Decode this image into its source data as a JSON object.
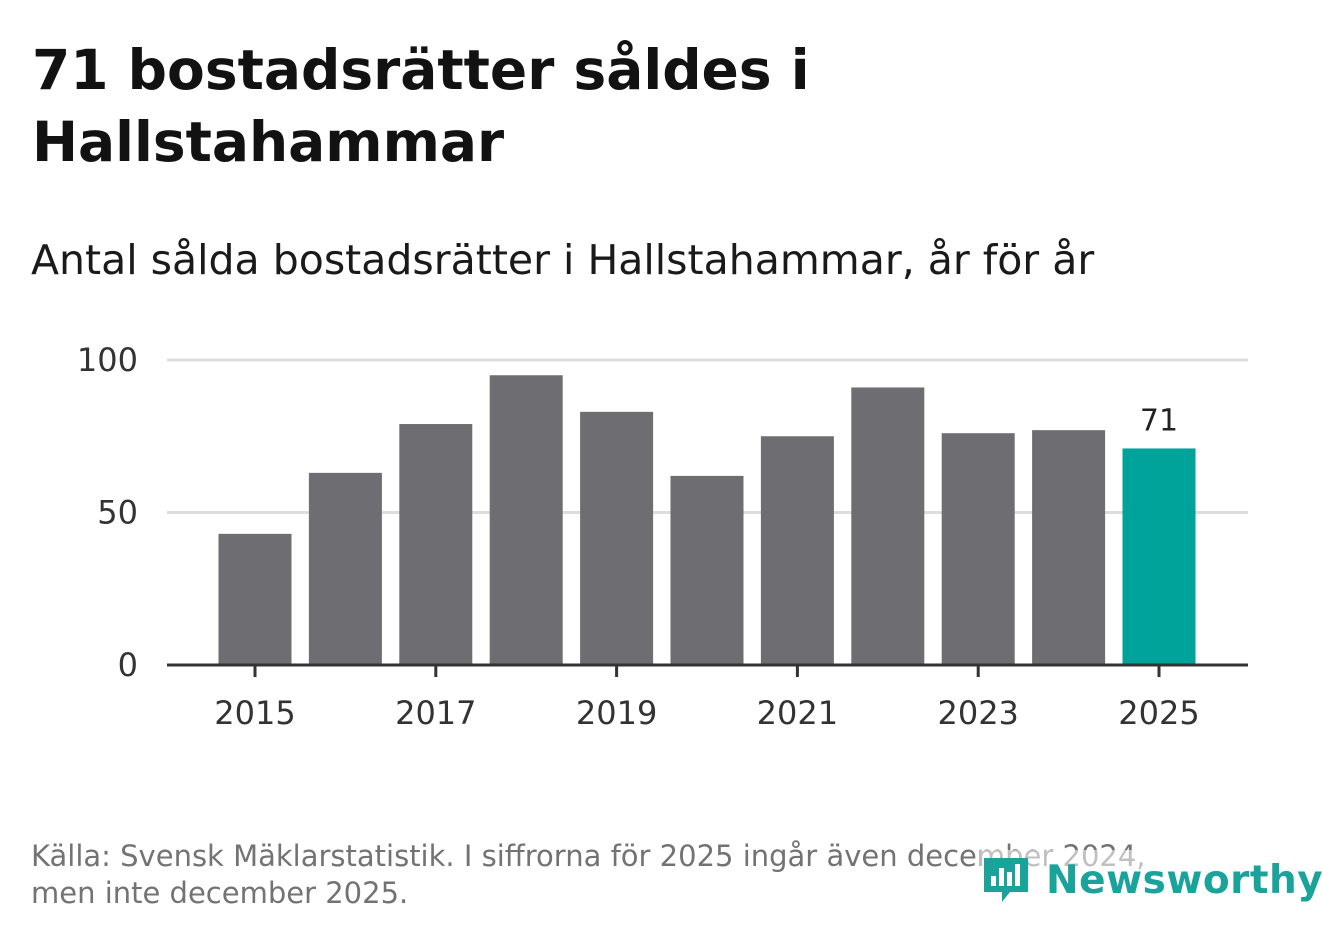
{
  "header": {
    "title": "71 bostadsrätter såldes i Hallstahammar",
    "subtitle": "Antal sålda bostadsrätter i Hallstahammar, år för år"
  },
  "chart_data": {
    "type": "bar",
    "title": "71 bostadsrätter såldes i Hallstahammar",
    "subtitle": "Antal sålda bostadsrätter i Hallstahammar, år för år",
    "xlabel": "",
    "ylabel": "",
    "categories": [
      "2015",
      "2016",
      "2017",
      "2018",
      "2019",
      "2020",
      "2021",
      "2022",
      "2023",
      "2024",
      "2025"
    ],
    "values": [
      43,
      63,
      79,
      95,
      83,
      62,
      75,
      91,
      76,
      77,
      71
    ],
    "x_tick_labels": [
      "2015",
      "2017",
      "2019",
      "2021",
      "2023",
      "2025"
    ],
    "y_ticks": [
      0,
      50,
      100
    ],
    "ylim": [
      0,
      100
    ],
    "grid": true,
    "highlight_index": 10,
    "data_labels": [
      {
        "index": 10,
        "text": "71"
      }
    ],
    "colors": {
      "bar": "#6e6d72",
      "highlight": "#00a39a",
      "grid": "#dddddd",
      "axis": "#333333"
    }
  },
  "footer": {
    "source_line1": "Källa: Svensk Mäklarstatistik. I siffrorna för 2025 ingår även december 2024,",
    "source_line2": "men inte december 2025."
  },
  "brand": {
    "name": "Newsworthy",
    "icon": "newsworthy-logo-icon",
    "color": "#1aa39a"
  }
}
